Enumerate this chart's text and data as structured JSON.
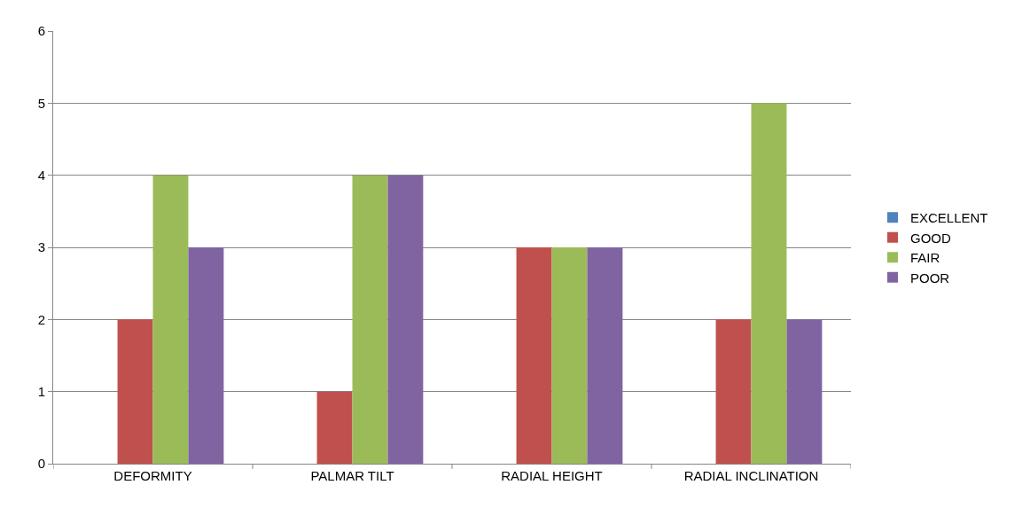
{
  "chart_data": {
    "type": "bar",
    "categories": [
      "DEFORMITY",
      "PALMAR TILT",
      "RADIAL HEIGHT",
      "RADIAL INCLINATION"
    ],
    "series": [
      {
        "name": "EXCELLENT",
        "color": "#4f81bd",
        "values": [
          0,
          0,
          0,
          0
        ]
      },
      {
        "name": "GOOD",
        "color": "#c0504d",
        "values": [
          2,
          1,
          3,
          2
        ]
      },
      {
        "name": "FAIR",
        "color": "#9bbb59",
        "values": [
          4,
          4,
          3,
          5
        ]
      },
      {
        "name": "POOR",
        "color": "#8064a2",
        "values": [
          3,
          4,
          3,
          2
        ]
      }
    ],
    "ylim": [
      0,
      6
    ],
    "yticks": [
      0,
      1,
      2,
      3,
      4,
      5,
      6
    ],
    "grid": "y",
    "legend": "right"
  }
}
